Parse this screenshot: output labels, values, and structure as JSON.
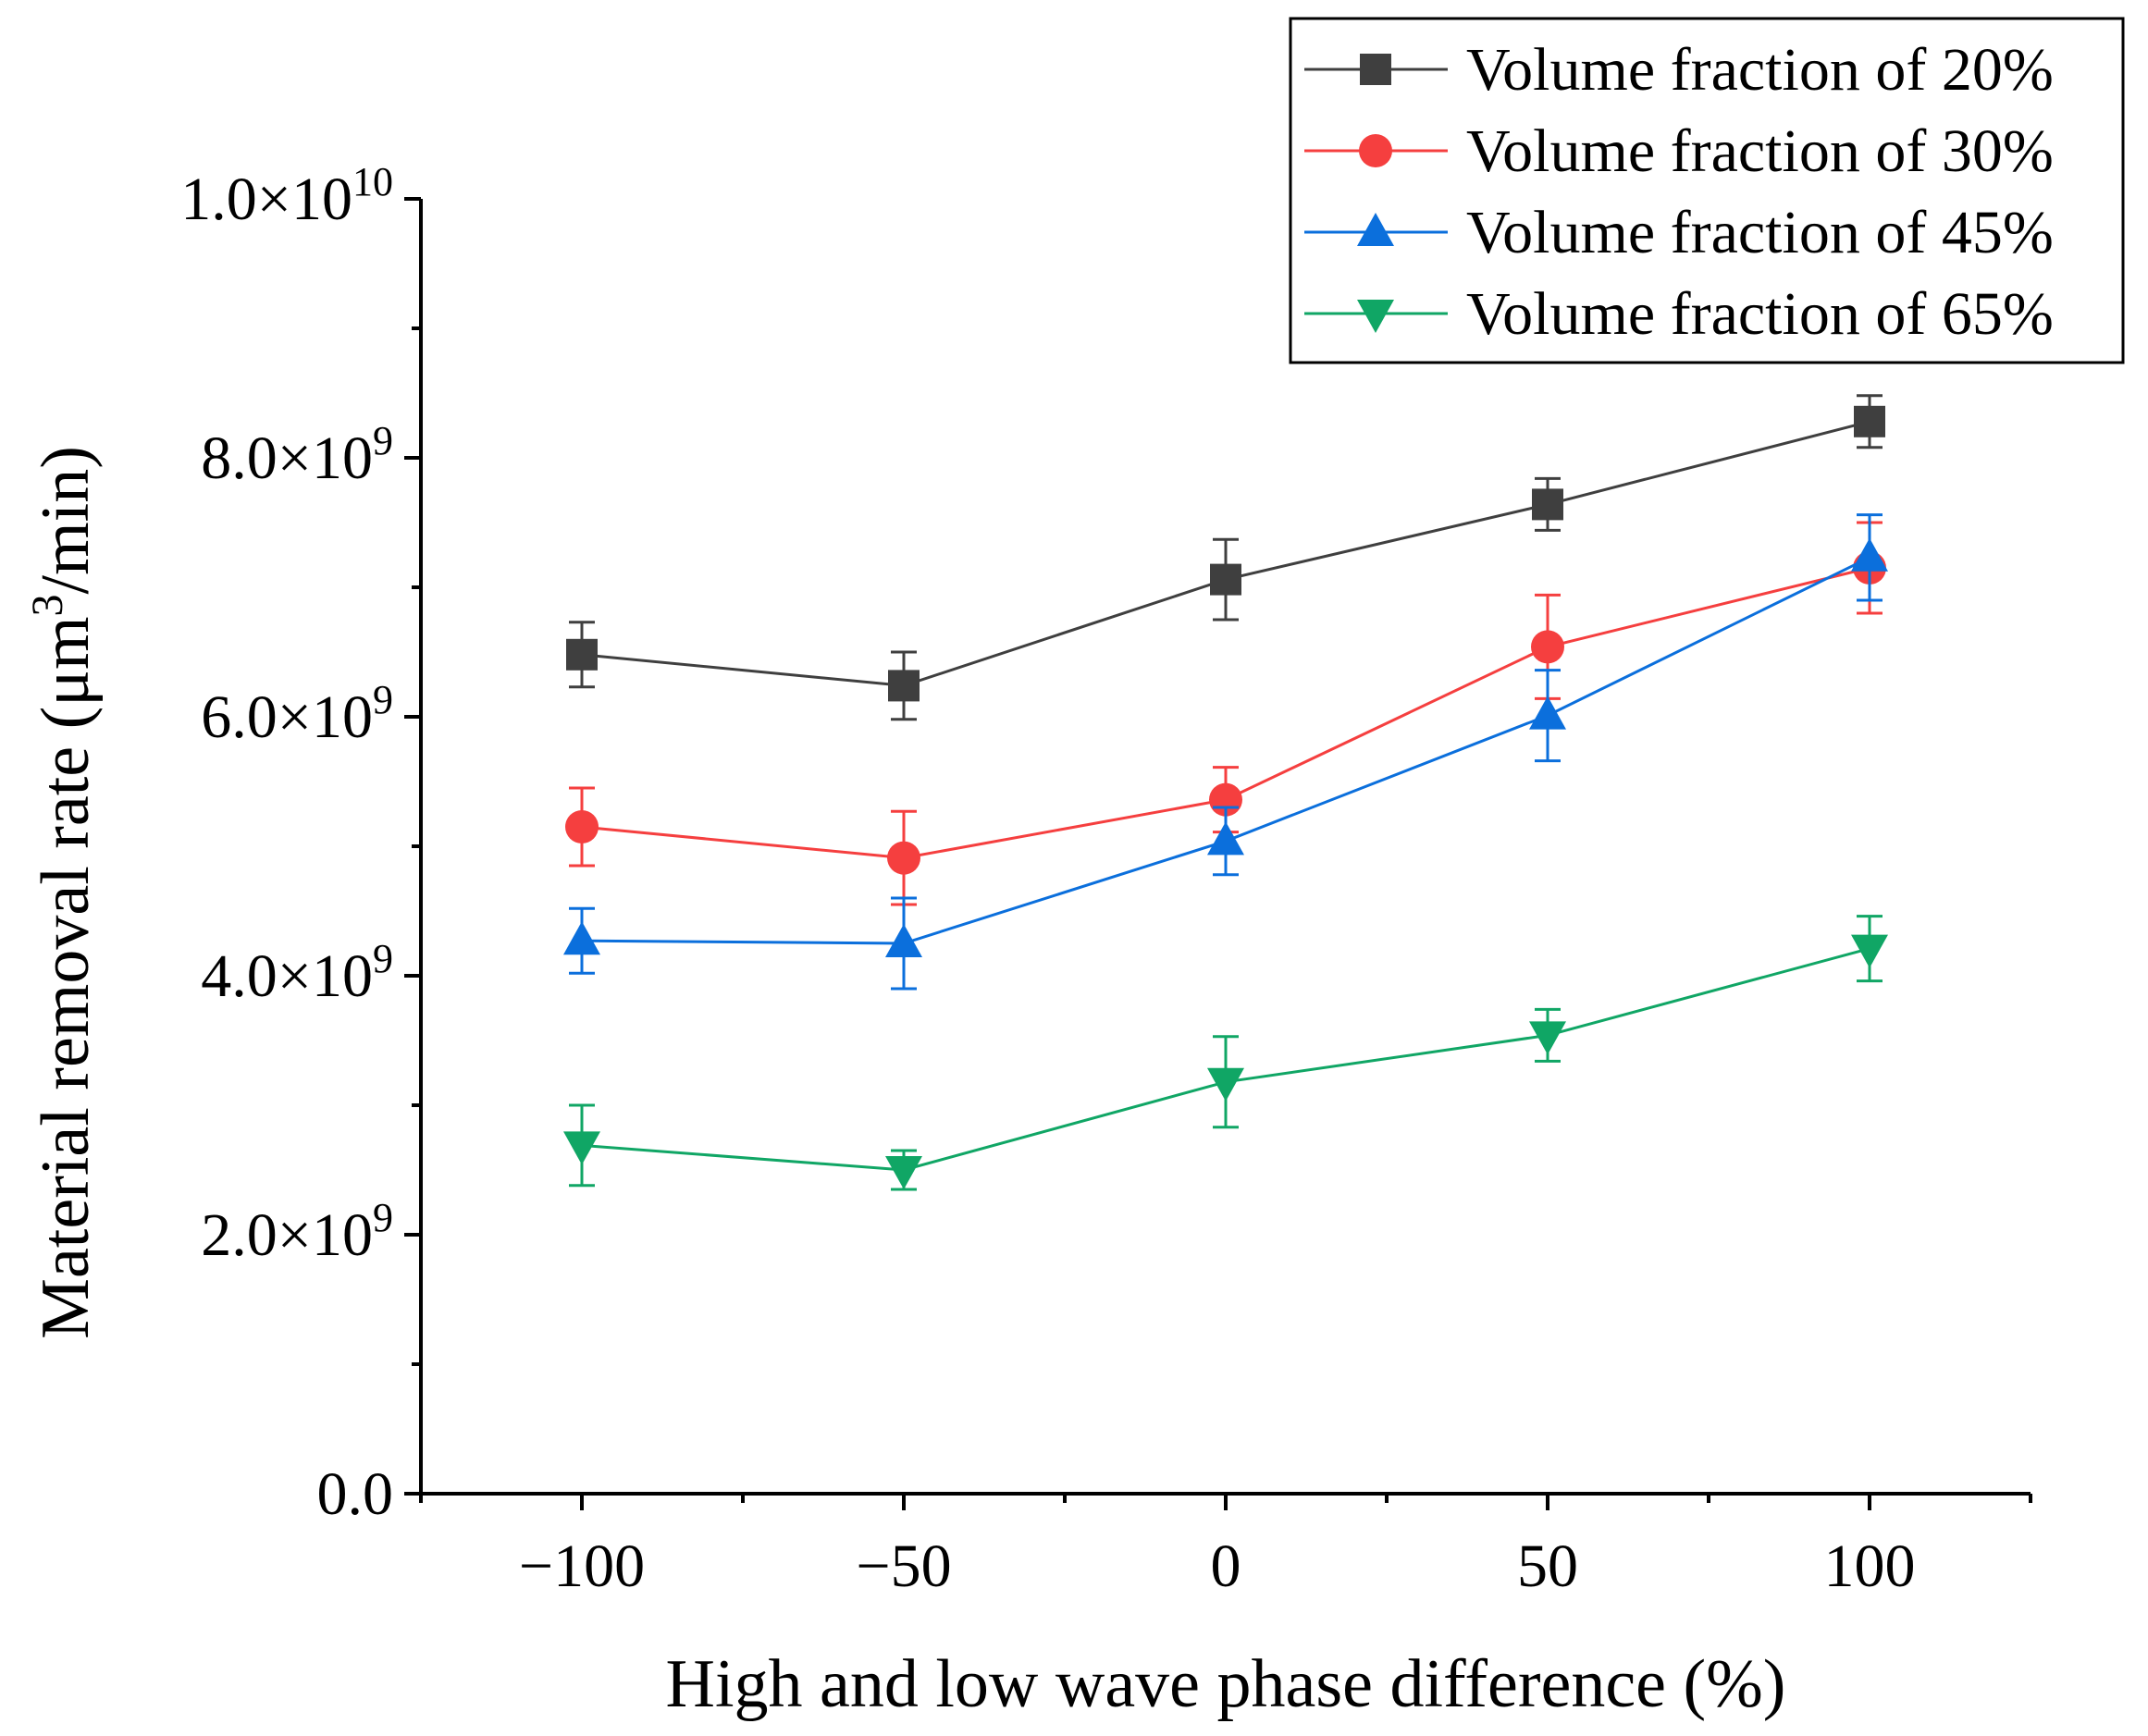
{
  "chart_data": {
    "type": "line",
    "title": "",
    "xlabel": "High and low wave phase difference (%)",
    "ylabel": "Material removal rate (μm³/min)",
    "ylabel_parts": {
      "main": "Material removal rate (μm",
      "sup": "3",
      "end": "/min)"
    },
    "xlim": [
      -125,
      125
    ],
    "ylim": [
      0,
      10000000000
    ],
    "x_ticks": [
      -100,
      -50,
      0,
      50,
      100
    ],
    "x_tick_labels": [
      "−100",
      "−50",
      "0",
      "50",
      "100"
    ],
    "y_ticks": [
      0,
      2000000000,
      4000000000,
      6000000000,
      8000000000,
      10000000000
    ],
    "y_tick_labels": [
      {
        "mant": "0.0",
        "exp": ""
      },
      {
        "mant": "2.0×10",
        "exp": "9"
      },
      {
        "mant": "4.0×10",
        "exp": "9"
      },
      {
        "mant": "6.0×10",
        "exp": "9"
      },
      {
        "mant": "8.0×10",
        "exp": "9"
      },
      {
        "mant": "1.0×10",
        "exp": "10"
      }
    ],
    "x": [
      -100,
      -50,
      0,
      50,
      100
    ],
    "series": [
      {
        "name": "Volume fraction of 20%",
        "color": "#3f3f3f",
        "marker": "square",
        "values": [
          6480000000,
          6240000000,
          7060000000,
          7640000000,
          8280000000
        ],
        "errors": [
          250000000,
          260000000,
          310000000,
          200000000,
          200000000
        ]
      },
      {
        "name": "Volume fraction of 30%",
        "color": "#f53f3f",
        "marker": "circle",
        "values": [
          5150000000,
          4910000000,
          5360000000,
          6540000000,
          7150000000
        ],
        "errors": [
          300000000,
          360000000,
          250000000,
          400000000,
          350000000
        ]
      },
      {
        "name": "Volume fraction of 45%",
        "color": "#0b6fdc",
        "marker": "triangle-up",
        "values": [
          4270000000,
          4250000000,
          5040000000,
          6010000000,
          7230000000
        ],
        "errors": [
          250000000,
          350000000,
          260000000,
          350000000,
          330000000
        ]
      },
      {
        "name": "Volume fraction of 65%",
        "color": "#10a665",
        "marker": "triangle-down",
        "values": [
          2690000000,
          2500000000,
          3180000000,
          3540000000,
          4210000000
        ],
        "errors": [
          310000000,
          150000000,
          350000000,
          200000000,
          250000000
        ]
      }
    ],
    "legend_position": "top-right"
  }
}
